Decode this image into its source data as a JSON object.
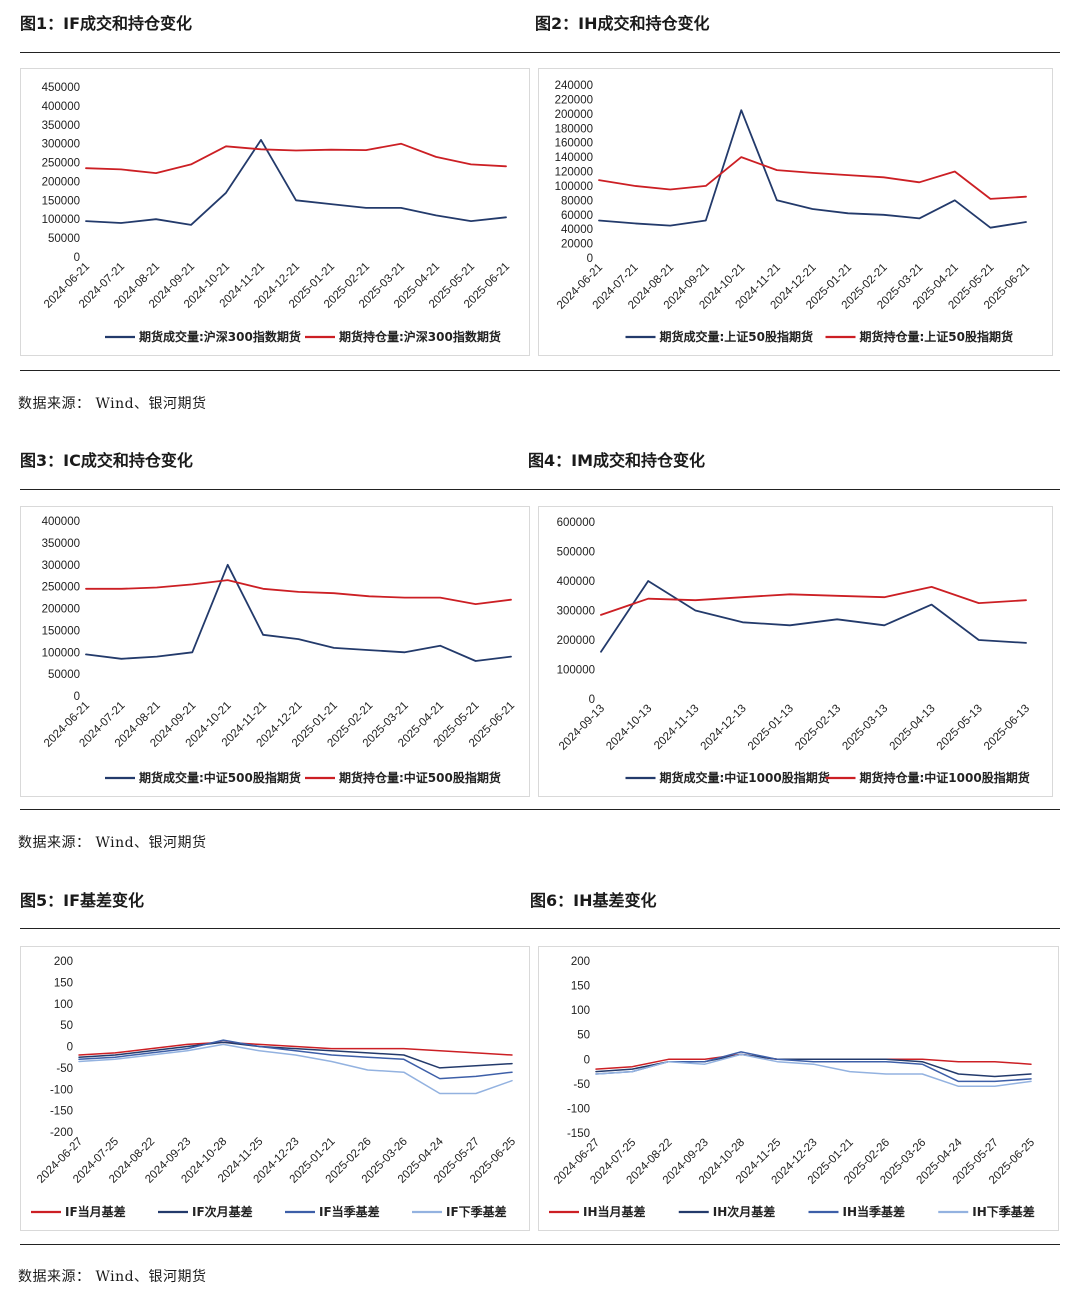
{
  "sections": [
    {
      "source": "数据来源： Wind、银河期货",
      "figures": [
        {
          "title": "图1：IF成交和持仓变化"
        },
        {
          "title": "图2：IH成交和持仓变化"
        }
      ]
    },
    {
      "source": "数据来源： Wind、银河期货",
      "figures": [
        {
          "title": "图3：IC成交和持仓变化"
        },
        {
          "title": "图4：IM成交和持仓变化"
        }
      ]
    },
    {
      "source": "数据来源： Wind、银河期货",
      "figures": [
        {
          "title": "图5：IF基差变化"
        },
        {
          "title": "图6：IH基差变化"
        }
      ]
    }
  ],
  "colors": {
    "dark_navy": "#233a6b",
    "red": "#cc1f24",
    "mid_blue": "#3d5fa8",
    "light_blue": "#93b2e0"
  },
  "chart_data": [
    {
      "type": "line",
      "ylim": [
        0,
        450000
      ],
      "yticks": [
        "0",
        "50000",
        "100000",
        "150000",
        "200000",
        "250000",
        "300000",
        "350000",
        "400000",
        "450000"
      ],
      "categories": [
        "2024-06-21",
        "2024-07-21",
        "2024-08-21",
        "2024-09-21",
        "2024-10-21",
        "2024-11-21",
        "2024-12-21",
        "2025-01-21",
        "2025-02-21",
        "2025-03-21",
        "2025-04-21",
        "2025-05-21",
        "2025-06-21"
      ],
      "series": [
        {
          "name": "期货成交量:沪深300指数期货",
          "color": "#233a6b",
          "values": [
            95000,
            90000,
            100000,
            85000,
            170000,
            310000,
            150000,
            140000,
            130000,
            130000,
            110000,
            95000,
            105000
          ]
        },
        {
          "name": "期货持仓量:沪深300指数期货",
          "color": "#cc1f24",
          "values": [
            235000,
            232000,
            222000,
            245000,
            293000,
            285000,
            282000,
            284000,
            283000,
            300000,
            265000,
            245000,
            240000
          ]
        }
      ]
    },
    {
      "type": "line",
      "ylim": [
        0,
        240000
      ],
      "yticks": [
        "0",
        "20000",
        "40000",
        "60000",
        "80000",
        "100000",
        "120000",
        "140000",
        "160000",
        "180000",
        "200000",
        "220000",
        "240000"
      ],
      "categories": [
        "2024-06-21",
        "2024-07-21",
        "2024-08-21",
        "2024-09-21",
        "2024-10-21",
        "2024-11-21",
        "2024-12-21",
        "2025-01-21",
        "2025-02-21",
        "2025-03-21",
        "2025-04-21",
        "2025-05-21",
        "2025-06-21"
      ],
      "series": [
        {
          "name": "期货成交量:上证50股指期货",
          "color": "#233a6b",
          "values": [
            52000,
            48000,
            45000,
            52000,
            205000,
            80000,
            68000,
            62000,
            60000,
            55000,
            80000,
            42000,
            50000
          ]
        },
        {
          "name": "期货持仓量:上证50股指期货",
          "color": "#cc1f24",
          "values": [
            108000,
            100000,
            95000,
            100000,
            140000,
            122000,
            118000,
            115000,
            112000,
            105000,
            120000,
            82000,
            85000
          ]
        }
      ]
    },
    {
      "type": "line",
      "ylim": [
        0,
        400000
      ],
      "yticks": [
        "0",
        "50000",
        "100000",
        "150000",
        "200000",
        "250000",
        "300000",
        "350000",
        "400000"
      ],
      "categories": [
        "2024-06-21",
        "2024-07-21",
        "2024-08-21",
        "2024-09-21",
        "2024-10-21",
        "2024-11-21",
        "2024-12-21",
        "2025-01-21",
        "2025-02-21",
        "2025-03-21",
        "2025-04-21",
        "2025-05-21",
        "2025-06-21"
      ],
      "series": [
        {
          "name": "期货成交量:中证500股指期货",
          "color": "#233a6b",
          "values": [
            95000,
            85000,
            90000,
            100000,
            300000,
            140000,
            130000,
            110000,
            105000,
            100000,
            115000,
            80000,
            90000
          ]
        },
        {
          "name": "期货持仓量:中证500股指期货",
          "color": "#cc1f24",
          "values": [
            245000,
            245000,
            248000,
            255000,
            265000,
            245000,
            238000,
            235000,
            228000,
            225000,
            225000,
            210000,
            220000
          ]
        }
      ]
    },
    {
      "type": "line",
      "ylim": [
        0,
        600000
      ],
      "yticks": [
        "0",
        "100000",
        "200000",
        "300000",
        "400000",
        "500000",
        "600000"
      ],
      "categories": [
        "2024-09-13",
        "2024-10-13",
        "2024-11-13",
        "2024-12-13",
        "2025-01-13",
        "2025-02-13",
        "2025-03-13",
        "2025-04-13",
        "2025-05-13",
        "2025-06-13"
      ],
      "series": [
        {
          "name": "期货成交量:中证1000股指期货",
          "color": "#233a6b",
          "values": [
            160000,
            400000,
            300000,
            260000,
            250000,
            270000,
            250000,
            320000,
            200000,
            190000
          ]
        },
        {
          "name": "期货持仓量:中证1000股指期货",
          "color": "#cc1f24",
          "values": [
            285000,
            340000,
            335000,
            345000,
            355000,
            350000,
            345000,
            380000,
            325000,
            335000
          ]
        }
      ]
    },
    {
      "type": "line",
      "ylim": [
        -200,
        200
      ],
      "yticks": [
        "-200",
        "-150",
        "-100",
        "-50",
        "0",
        "50",
        "100",
        "150",
        "200"
      ],
      "categories": [
        "2024-06-27",
        "2024-07-25",
        "2024-08-22",
        "2024-09-23",
        "2024-10-28",
        "2024-11-25",
        "2024-12-23",
        "2025-01-21",
        "2025-02-26",
        "2025-03-26",
        "2025-04-24",
        "2025-05-27",
        "2025-06-25"
      ],
      "series": [
        {
          "name": "IF当月基差",
          "color": "#cc1f24",
          "values": [
            -20,
            -15,
            -5,
            5,
            10,
            5,
            0,
            -5,
            -5,
            -5,
            -10,
            -15,
            -20
          ]
        },
        {
          "name": "IF次月基差",
          "color": "#233a6b",
          "values": [
            -25,
            -20,
            -10,
            0,
            10,
            0,
            -5,
            -10,
            -15,
            -20,
            -50,
            -45,
            -40
          ]
        },
        {
          "name": "IF当季基差",
          "color": "#3d5fa8",
          "values": [
            -30,
            -25,
            -15,
            -5,
            15,
            0,
            -10,
            -20,
            -25,
            -30,
            -75,
            -70,
            -60
          ]
        },
        {
          "name": "IF下季基差",
          "color": "#93b2e0",
          "values": [
            -35,
            -30,
            -20,
            -10,
            5,
            -10,
            -20,
            -35,
            -55,
            -60,
            -110,
            -110,
            -80
          ]
        }
      ]
    },
    {
      "type": "line",
      "ylim": [
        -150,
        200
      ],
      "yticks": [
        "-150",
        "-100",
        "-50",
        "0",
        "50",
        "100",
        "150",
        "200"
      ],
      "categories": [
        "2024-06-27",
        "2024-07-25",
        "2024-08-22",
        "2024-09-23",
        "2024-10-28",
        "2024-11-25",
        "2024-12-23",
        "2025-01-21",
        "2025-02-26",
        "2025-03-26",
        "2025-04-24",
        "2025-05-27",
        "2025-06-25"
      ],
      "series": [
        {
          "name": "IH当月基差",
          "color": "#cc1f24",
          "values": [
            -20,
            -15,
            0,
            0,
            10,
            0,
            0,
            0,
            0,
            0,
            -5,
            -5,
            -10
          ]
        },
        {
          "name": "IH次月基差",
          "color": "#233a6b",
          "values": [
            -25,
            -20,
            -5,
            -5,
            10,
            0,
            0,
            0,
            0,
            -5,
            -30,
            -35,
            -30
          ]
        },
        {
          "name": "IH当季基差",
          "color": "#3d5fa8",
          "values": [
            -30,
            -25,
            -5,
            -5,
            15,
            0,
            -5,
            -5,
            -5,
            -10,
            -45,
            -45,
            -40
          ]
        },
        {
          "name": "IH下季基差",
          "color": "#93b2e0",
          "values": [
            -30,
            -25,
            -5,
            -10,
            10,
            -5,
            -10,
            -25,
            -30,
            -30,
            -55,
            -55,
            -45
          ]
        }
      ]
    }
  ]
}
